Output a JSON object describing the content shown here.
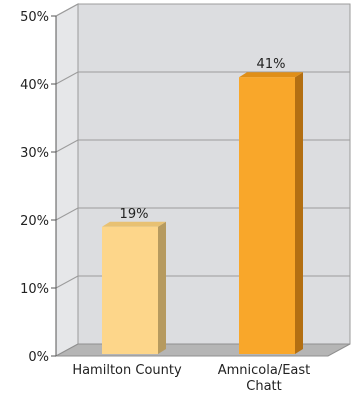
{
  "chart_data": {
    "type": "bar",
    "categories": [
      "Hamilton County",
      "Amnicola/East Chatt"
    ],
    "category_label_lines": [
      [
        "Hamilton County"
      ],
      [
        "Amnicola/East",
        "Chatt"
      ]
    ],
    "values": [
      19,
      41
    ],
    "data_labels": [
      "19%",
      "41%"
    ],
    "ylim": [
      0,
      50
    ],
    "y_ticks": [
      0,
      10,
      20,
      30,
      40,
      50
    ],
    "y_tick_labels": [
      "0%",
      "10%",
      "20%",
      "30%",
      "40%",
      "50%"
    ],
    "bar_colors": [
      "#FDD68A",
      "#F9A72A"
    ],
    "background_color": "#DCDDE0",
    "grid": true,
    "style": "3d"
  }
}
